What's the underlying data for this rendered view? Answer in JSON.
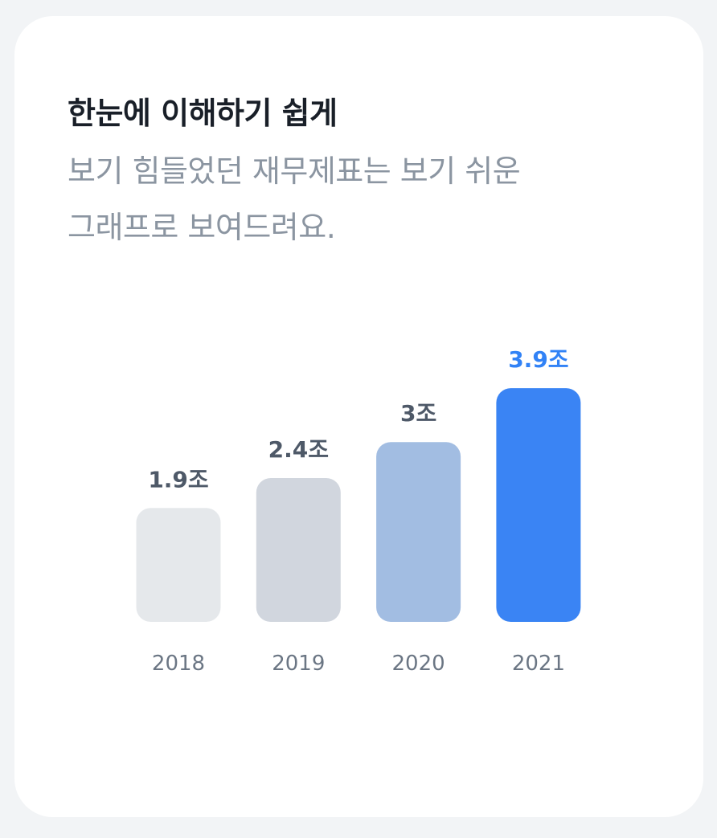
{
  "header": {
    "title": "한눈에 이해하기 쉽게",
    "subtitle_lines": [
      "보기 힘들었던 재무제표는 보기 쉬운",
      "그래프로 보여드려요."
    ]
  },
  "chart_data": {
    "type": "bar",
    "categories": [
      "2018",
      "2019",
      "2020",
      "2021"
    ],
    "values": [
      1.9,
      2.4,
      3.0,
      3.9
    ],
    "data_labels": [
      "1.9조",
      "2.4조",
      "3조",
      "3.9조"
    ],
    "bar_colors": [
      "#e5e8eb",
      "#d1d6de",
      "#a2bde2",
      "#3a84f4"
    ],
    "label_colors": [
      "#4e5968",
      "#4e5968",
      "#4e5968",
      "#3182f6"
    ],
    "grid": false,
    "legend": "none"
  }
}
